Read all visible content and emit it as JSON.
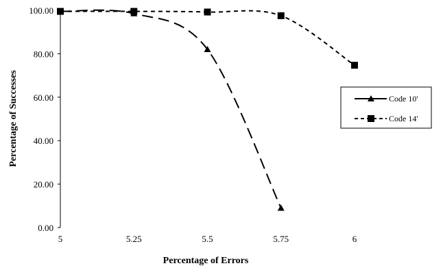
{
  "chart_data": {
    "type": "line",
    "title": "",
    "xlabel": "Percentage of Errors",
    "ylabel": "Percentage of Successes",
    "x": [
      5,
      5.25,
      5.5,
      5.75,
      6
    ],
    "x_tick_labels": [
      "5",
      "5.25",
      "5.5",
      "5.75",
      "6"
    ],
    "y_tick_labels": [
      "0.00",
      "20.00",
      "40.00",
      "60.00",
      "80.00",
      "100.00"
    ],
    "xlim": [
      5,
      6
    ],
    "ylim": [
      0,
      100
    ],
    "grid": false,
    "legend_position": "right",
    "series": [
      {
        "name": "Code 10'",
        "marker": "triangle",
        "line_style": "long-dash",
        "x": [
          5,
          5.25,
          5.5,
          5.75
        ],
        "values": [
          99.5,
          98.5,
          82,
          9
        ]
      },
      {
        "name": "Code 14'",
        "marker": "square",
        "line_style": "short-dash",
        "x": [
          5,
          5.25,
          5.5,
          5.75,
          6
        ],
        "values": [
          99.5,
          99.5,
          99.2,
          97.5,
          74.7
        ]
      }
    ],
    "colors": {
      "line": "#000000",
      "background": "#ffffff"
    }
  }
}
